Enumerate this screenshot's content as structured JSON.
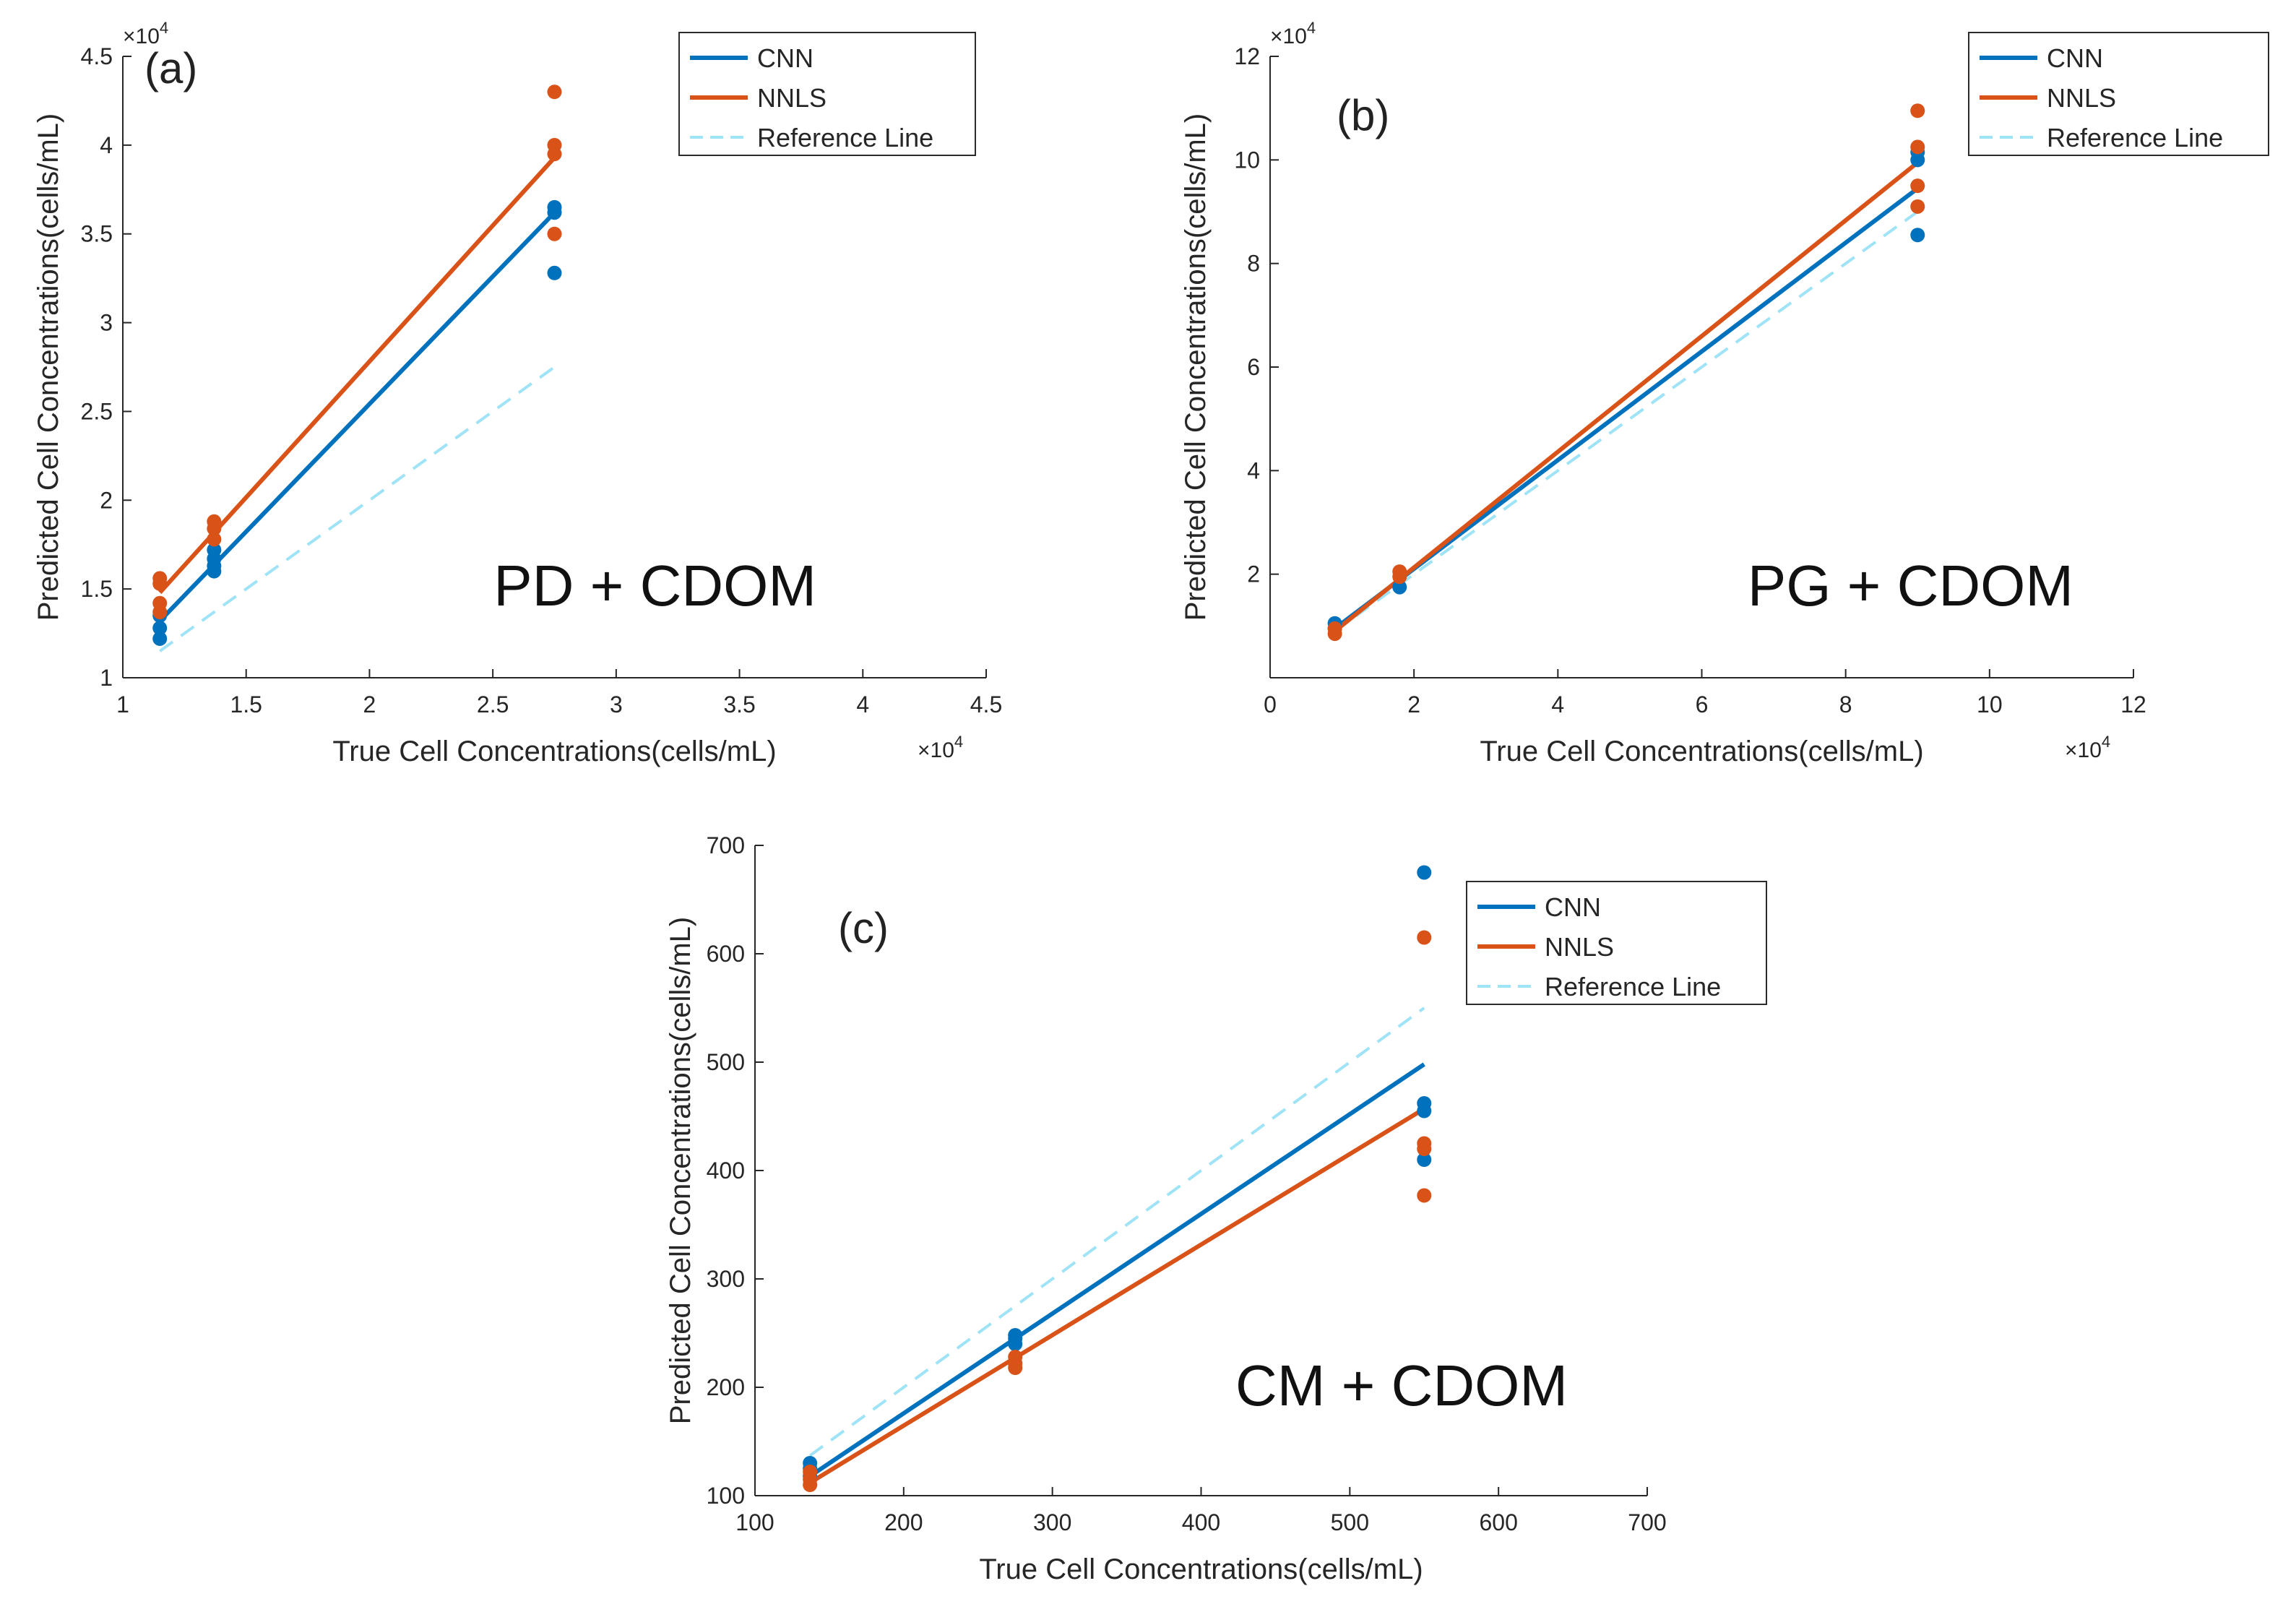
{
  "colors": {
    "cnn": "#0072BD",
    "nnls": "#D95319",
    "reference": "#9FE3F7",
    "axis": "#262626"
  },
  "chart_data": [
    {
      "type": "scatter",
      "panel_label": "(a)",
      "annotation": "PD + CDOM",
      "xlabel": "True Cell Concentrations(cells/mL)",
      "ylabel": "Predicted Cell Concentrations(cells/mL)",
      "xlim": [
        1,
        4.5
      ],
      "ylim": [
        1,
        4.5
      ],
      "xticks": [
        1,
        1.5,
        2,
        2.5,
        3,
        3.5,
        4,
        4.5
      ],
      "yticks": [
        1,
        1.5,
        2,
        2.5,
        3,
        3.5,
        4,
        4.5
      ],
      "xtick_labels": [
        "1",
        "1.5",
        "2",
        "2.5",
        "3",
        "3.5",
        "4",
        "4.5"
      ],
      "ytick_labels": [
        "1",
        "1.5",
        "2",
        "2.5",
        "3",
        "3.5",
        "4",
        "4.5"
      ],
      "x_multiplier": "×10",
      "y_multiplier": "×10",
      "exponent": "4",
      "legend": [
        "CNN",
        "NNLS",
        "Reference Line"
      ],
      "legend_position": "top-right",
      "series": [
        {
          "name": "CNN",
          "kind": "points",
          "x": [
            1.15,
            1.15,
            1.15,
            1.37,
            1.37,
            1.37,
            1.37,
            2.75,
            2.75,
            2.75
          ],
          "y": [
            1.22,
            1.28,
            1.35,
            1.6,
            1.63,
            1.67,
            1.72,
            3.28,
            3.62,
            3.65
          ]
        },
        {
          "name": "NNLS",
          "kind": "points",
          "x": [
            1.15,
            1.15,
            1.15,
            1.15,
            1.37,
            1.37,
            1.37,
            2.75,
            2.75,
            2.75,
            2.75
          ],
          "y": [
            1.37,
            1.42,
            1.53,
            1.56,
            1.78,
            1.84,
            1.88,
            3.5,
            3.95,
            4.0,
            4.3
          ]
        },
        {
          "name": "CNN fit",
          "kind": "line",
          "x": [
            1.15,
            2.75
          ],
          "y": [
            1.32,
            3.62
          ]
        },
        {
          "name": "NNLS fit",
          "kind": "line",
          "x": [
            1.15,
            2.75
          ],
          "y": [
            1.48,
            3.93
          ]
        },
        {
          "name": "Reference Line",
          "kind": "dashed",
          "x": [
            1.15,
            2.75
          ],
          "y": [
            1.15,
            2.75
          ]
        }
      ]
    },
    {
      "type": "scatter",
      "panel_label": "(b)",
      "annotation": "PG + CDOM",
      "xlabel": "True Cell Concentrations(cells/mL)",
      "ylabel": "Predicted Cell Concentrations(cells/mL)",
      "xlim": [
        0,
        12
      ],
      "ylim": [
        0,
        12
      ],
      "xticks": [
        0,
        2,
        4,
        6,
        8,
        10,
        12
      ],
      "yticks": [
        2,
        4,
        6,
        8,
        10,
        12
      ],
      "xtick_labels": [
        "0",
        "2",
        "4",
        "6",
        "8",
        "10",
        "12"
      ],
      "ytick_labels": [
        "2",
        "4",
        "6",
        "8",
        "10",
        "12"
      ],
      "x_multiplier": "×10",
      "y_multiplier": "×10",
      "exponent": "4",
      "legend": [
        "CNN",
        "NNLS",
        "Reference Line"
      ],
      "legend_position": "top-right",
      "series": [
        {
          "name": "CNN",
          "kind": "points",
          "x": [
            0.9,
            0.9,
            1.8,
            9.0,
            9.0,
            9.0
          ],
          "y": [
            0.95,
            1.05,
            1.75,
            8.55,
            10.0,
            10.15
          ]
        },
        {
          "name": "NNLS",
          "kind": "points",
          "x": [
            0.9,
            0.9,
            1.8,
            1.8,
            9.0,
            9.0,
            9.0,
            9.0
          ],
          "y": [
            0.85,
            0.95,
            1.95,
            2.05,
            9.1,
            9.5,
            10.25,
            10.95
          ]
        },
        {
          "name": "CNN fit",
          "kind": "line",
          "x": [
            0.9,
            9.0
          ],
          "y": [
            0.95,
            9.45
          ]
        },
        {
          "name": "NNLS fit",
          "kind": "line",
          "x": [
            0.9,
            9.0
          ],
          "y": [
            0.9,
            9.95
          ]
        },
        {
          "name": "Reference Line",
          "kind": "dashed",
          "x": [
            0.9,
            9.0
          ],
          "y": [
            0.9,
            9.0
          ]
        }
      ]
    },
    {
      "type": "scatter",
      "panel_label": "(c)",
      "annotation": "CM + CDOM",
      "xlabel": "True Cell Concentrations(cells/mL)",
      "ylabel": "Predicted Cell Concentrations(cells/mL)",
      "xlim": [
        100,
        700
      ],
      "ylim": [
        100,
        700
      ],
      "xticks": [
        100,
        200,
        300,
        400,
        500,
        600,
        700
      ],
      "yticks": [
        100,
        200,
        300,
        400,
        500,
        600,
        700
      ],
      "xtick_labels": [
        "100",
        "200",
        "300",
        "400",
        "500",
        "600",
        "700"
      ],
      "ytick_labels": [
        "100",
        "200",
        "300",
        "400",
        "500",
        "600",
        "700"
      ],
      "x_multiplier": "",
      "y_multiplier": "",
      "exponent": "",
      "legend": [
        "CNN",
        "NNLS",
        "Reference Line"
      ],
      "legend_position": "top-right",
      "series": [
        {
          "name": "CNN",
          "kind": "points",
          "x": [
            137,
            137,
            137,
            275,
            275,
            275,
            550,
            550,
            550,
            550
          ],
          "y": [
            118,
            125,
            130,
            240,
            245,
            248,
            410,
            455,
            462,
            675
          ]
        },
        {
          "name": "NNLS",
          "kind": "points",
          "x": [
            137,
            137,
            137,
            275,
            275,
            275,
            550,
            550,
            550,
            550
          ],
          "y": [
            110,
            115,
            122,
            218,
            222,
            228,
            377,
            420,
            425,
            615
          ]
        },
        {
          "name": "CNN fit",
          "kind": "line",
          "x": [
            137,
            550
          ],
          "y": [
            118,
            498
          ]
        },
        {
          "name": "NNLS fit",
          "kind": "line",
          "x": [
            137,
            550
          ],
          "y": [
            112,
            457
          ]
        },
        {
          "name": "Reference Line",
          "kind": "dashed",
          "x": [
            137,
            550
          ],
          "y": [
            137,
            550
          ]
        }
      ]
    }
  ]
}
